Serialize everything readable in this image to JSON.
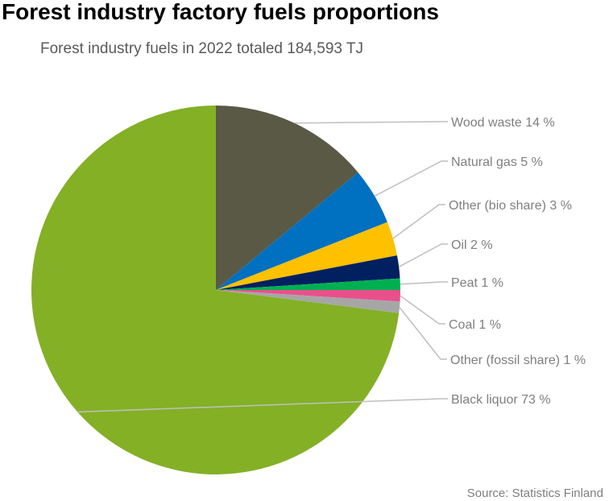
{
  "chart_data": {
    "type": "pie",
    "title": "Forest industry factory fuels proportions",
    "subtitle": "Forest industry fuels in 2022 totaled 184,593 TJ",
    "source": "Source: Statistics Finland",
    "slices": [
      {
        "name": "Wood waste",
        "value": 14,
        "label": "Wood waste 14 %",
        "color": "#595946"
      },
      {
        "name": "Natural gas",
        "value": 5,
        "label": "Natural gas 5 %",
        "color": "#0070c0"
      },
      {
        "name": "Other (bio share)",
        "value": 3,
        "label": "Other (bio share) 3 %",
        "color": "#ffc000"
      },
      {
        "name": "Oil",
        "value": 2,
        "label": "Oil 2 %",
        "color": "#002060"
      },
      {
        "name": "Peat",
        "value": 1,
        "label": "Peat 1 %",
        "color": "#00b050"
      },
      {
        "name": "Coal",
        "value": 1,
        "label": "Coal 1 %",
        "color": "#e8508c"
      },
      {
        "name": "Other (fossil share)",
        "value": 1,
        "label": "Other (fossil share) 1 %",
        "color": "#a6a6a6"
      },
      {
        "name": "Black liquor",
        "value": 73,
        "label": "Black liquor 73 %",
        "color": "#84b026"
      }
    ],
    "start_angle": "12 o'clock",
    "direction": "clockwise",
    "legend": "none",
    "leader_line_color": "#bfbfbf"
  }
}
